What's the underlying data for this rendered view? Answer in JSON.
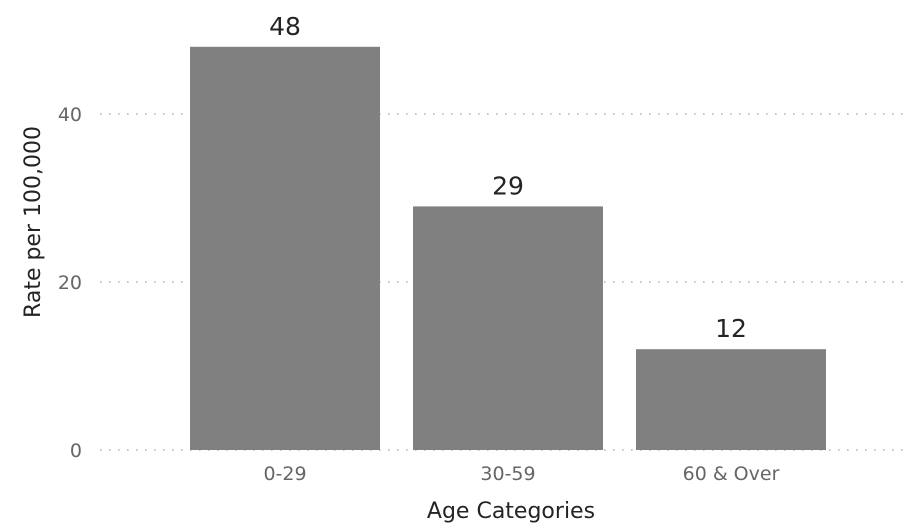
{
  "chart_data": {
    "type": "bar",
    "categories": [
      "0-29",
      "30-59",
      "60 & Over"
    ],
    "values": [
      48,
      29,
      12
    ],
    "data_labels": [
      "48",
      "29",
      "12"
    ],
    "title": "",
    "xlabel": "Age Categories",
    "ylabel": "Rate per 100,000",
    "ylim": [
      0,
      50
    ],
    "yticks": [
      0,
      20,
      40
    ],
    "grid": true,
    "legend": "none",
    "bar_color": "#808080",
    "grid_color": "#b3b3b3",
    "tick_color": "#666666",
    "label_color": "#252423"
  }
}
